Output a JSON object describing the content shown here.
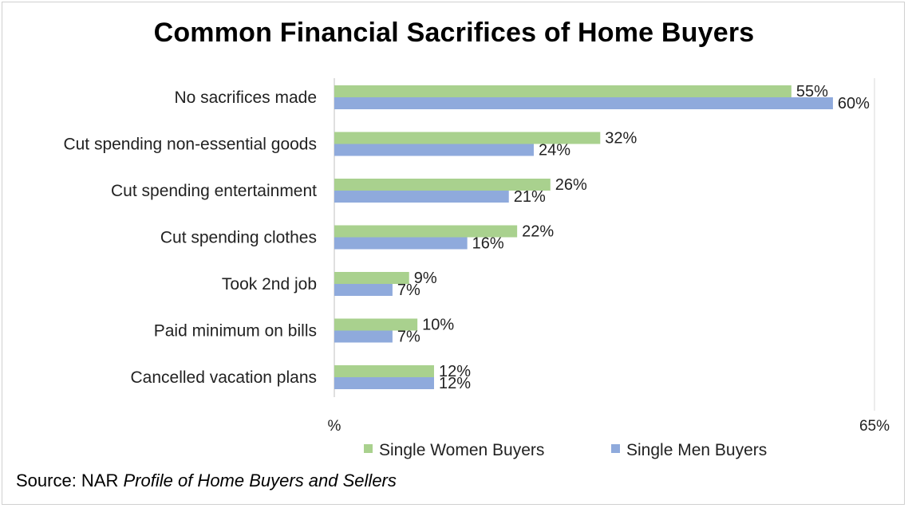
{
  "chart_data": {
    "type": "bar",
    "orientation": "horizontal",
    "title": "Common Financial Sacrifices of Home Buyers",
    "categories": [
      "No sacrifices made",
      "Cut spending non-essential goods",
      "Cut spending entertainment",
      "Cut spending clothes",
      "Took 2nd job",
      "Paid minimum on bills",
      "Cancelled vacation plans"
    ],
    "series": [
      {
        "name": "Single Women Buyers",
        "color": "#a9d18e",
        "values": [
          55,
          32,
          26,
          22,
          9,
          10,
          12
        ]
      },
      {
        "name": "Single Men Buyers",
        "color": "#8faadc",
        "values": [
          60,
          24,
          21,
          16,
          7,
          7,
          12
        ]
      }
    ],
    "value_suffix": "%",
    "xlim": [
      0,
      65
    ],
    "x_tick_labels": [
      "%",
      "65%"
    ],
    "legend_position": "bottom",
    "grid": false
  },
  "source": {
    "prefix": "Source: NAR ",
    "italic": "Profile of Home Buyers and Sellers"
  }
}
